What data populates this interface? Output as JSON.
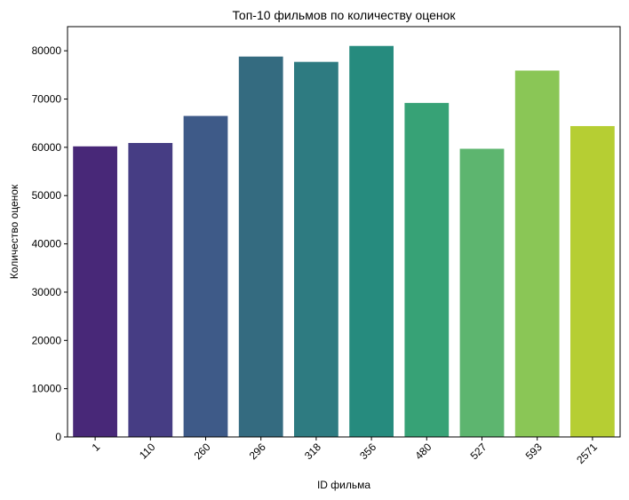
{
  "chart_data": {
    "type": "bar",
    "title": "Топ-10 фильмов по количеству оценок",
    "xlabel": "ID фильма",
    "ylabel": "Количество оценок",
    "categories": [
      "1",
      "110",
      "260",
      "296",
      "318",
      "356",
      "480",
      "527",
      "593",
      "2571"
    ],
    "values": [
      60200,
      60900,
      66500,
      78800,
      77700,
      81000,
      69200,
      59700,
      75900,
      64400
    ],
    "ylim": [
      0,
      85000
    ],
    "yticks": [
      0,
      10000,
      20000,
      30000,
      40000,
      50000,
      60000,
      70000,
      80000
    ],
    "colors": [
      "#482878",
      "#463d84",
      "#3e5a88",
      "#346b80",
      "#2e7b81",
      "#268b7e",
      "#37a276",
      "#5db56f",
      "#8ac656",
      "#b6ce33"
    ],
    "grid": false,
    "x_tick_rotation": 45
  }
}
